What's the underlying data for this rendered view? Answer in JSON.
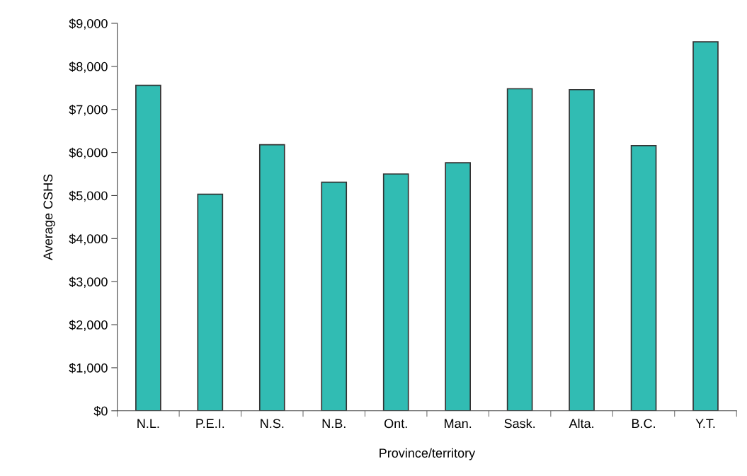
{
  "chart_data": {
    "type": "bar",
    "xlabel": "Province/territory",
    "ylabel": "Average CSHS",
    "categories": [
      "N.L.",
      "P.E.I.",
      "N.S.",
      "N.B.",
      "Ont.",
      "Man.",
      "Sask.",
      "Alta.",
      "B.C.",
      "Y.T."
    ],
    "values": [
      7560,
      5030,
      6180,
      5310,
      5500,
      5760,
      7480,
      7460,
      6160,
      8570
    ],
    "color": "#31bcb3",
    "ylim": [
      0,
      9000
    ],
    "yticks": [
      {
        "value": 0,
        "label": "$0"
      },
      {
        "value": 1000,
        "label": "$1,000"
      },
      {
        "value": 2000,
        "label": "$2,000"
      },
      {
        "value": 3000,
        "label": "$3,000"
      },
      {
        "value": 4000,
        "label": "$4,000"
      },
      {
        "value": 5000,
        "label": "$5,000"
      },
      {
        "value": 6000,
        "label": "$6,000"
      },
      {
        "value": 7000,
        "label": "$7,000"
      },
      {
        "value": 8000,
        "label": "$8,000"
      },
      {
        "value": 9000,
        "label": "$9,000"
      }
    ],
    "grid": false,
    "legend": false
  }
}
